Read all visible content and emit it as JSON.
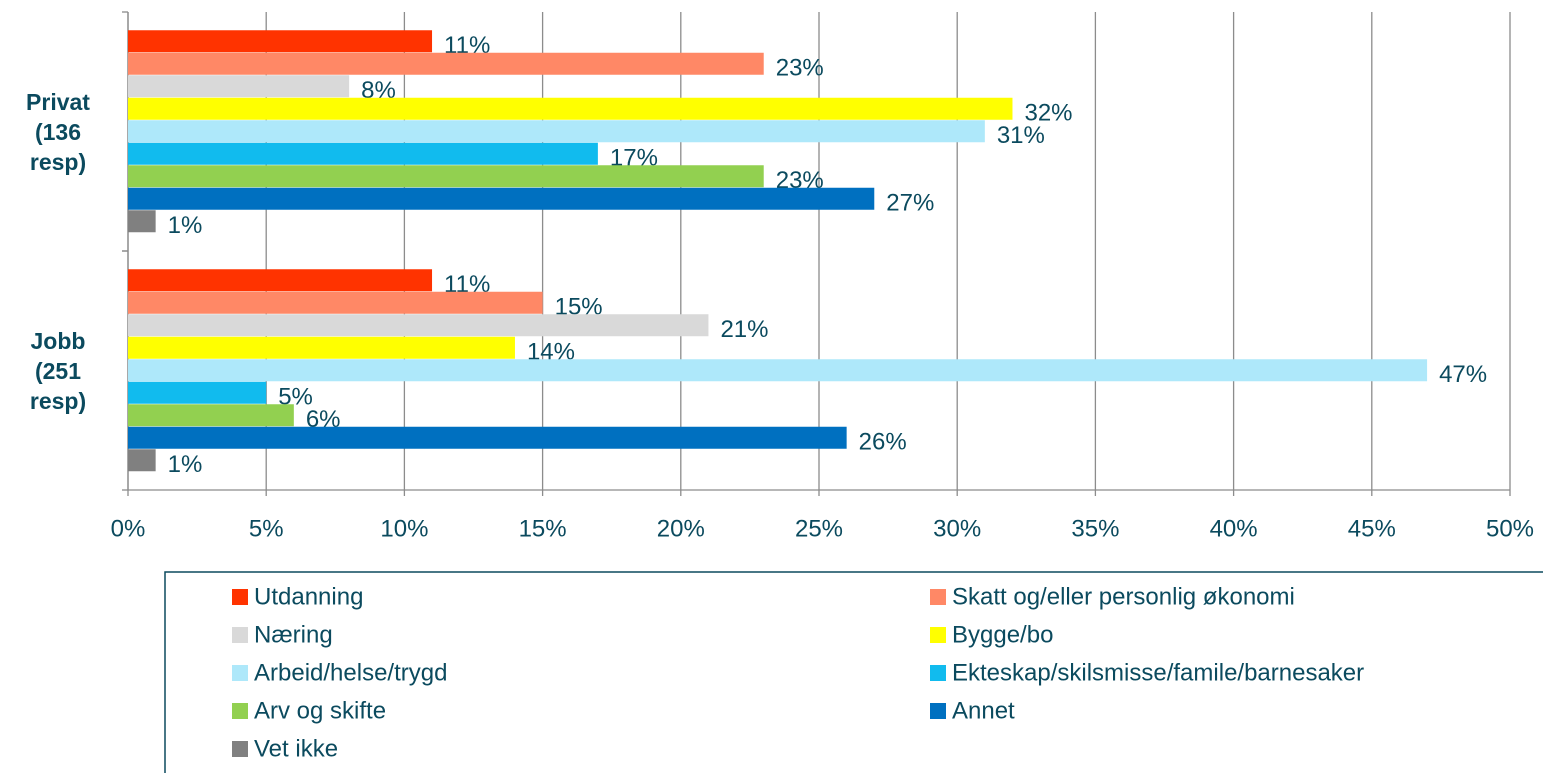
{
  "chart_data": {
    "type": "hbar",
    "categories": [
      "Privat (136 resp)",
      "Jobb (251 resp)"
    ],
    "series": [
      {
        "name": "Utdanning",
        "color": "#ff3300",
        "values": [
          11,
          11
        ],
        "value_labels": [
          "11%",
          "11%"
        ]
      },
      {
        "name": "Skatt og/eller personlig økonomi",
        "color": "#ff8866",
        "values": [
          23,
          15
        ],
        "value_labels": [
          "23%",
          "15%"
        ]
      },
      {
        "name": "Næring",
        "color": "#d9d9d9",
        "values": [
          8,
          21
        ],
        "value_labels": [
          "8%",
          "21%"
        ]
      },
      {
        "name": "Bygge/bo",
        "color": "#ffff00",
        "values": [
          32,
          14
        ],
        "value_labels": [
          "32%",
          "14%"
        ]
      },
      {
        "name": "Arbeid/helse/trygd",
        "color": "#aee8fa",
        "values": [
          31,
          47
        ],
        "value_labels": [
          "31%",
          "47%"
        ]
      },
      {
        "name": "Ekteskap/skilsmisse/famile/barnesaker",
        "color": "#11bbee",
        "values": [
          17,
          5
        ],
        "value_labels": [
          "17%",
          "5%"
        ]
      },
      {
        "name": "Arv og skifte",
        "color": "#92d050",
        "values": [
          23,
          6
        ],
        "value_labels": [
          "23%",
          "6%"
        ]
      },
      {
        "name": "Annet",
        "color": "#0070c0",
        "values": [
          27,
          26
        ],
        "value_labels": [
          "27%",
          "26%"
        ]
      },
      {
        "name": "Vet ikke",
        "color": "#808080",
        "values": [
          1,
          1
        ],
        "value_labels": [
          "1%",
          "1%"
        ]
      }
    ],
    "xlim": [
      0,
      50
    ],
    "xticks": [
      {
        "value": 0,
        "label": "0%"
      },
      {
        "value": 5,
        "label": "5%"
      },
      {
        "value": 10,
        "label": "10%"
      },
      {
        "value": 15,
        "label": "15%"
      },
      {
        "value": 20,
        "label": "20%"
      },
      {
        "value": 25,
        "label": "25%"
      },
      {
        "value": 30,
        "label": "30%"
      },
      {
        "value": 35,
        "label": "35%"
      },
      {
        "value": 40,
        "label": "40%"
      },
      {
        "value": 45,
        "label": "45%"
      },
      {
        "value": 50,
        "label": "50%"
      }
    ],
    "grid": true,
    "legend": "bottom"
  }
}
